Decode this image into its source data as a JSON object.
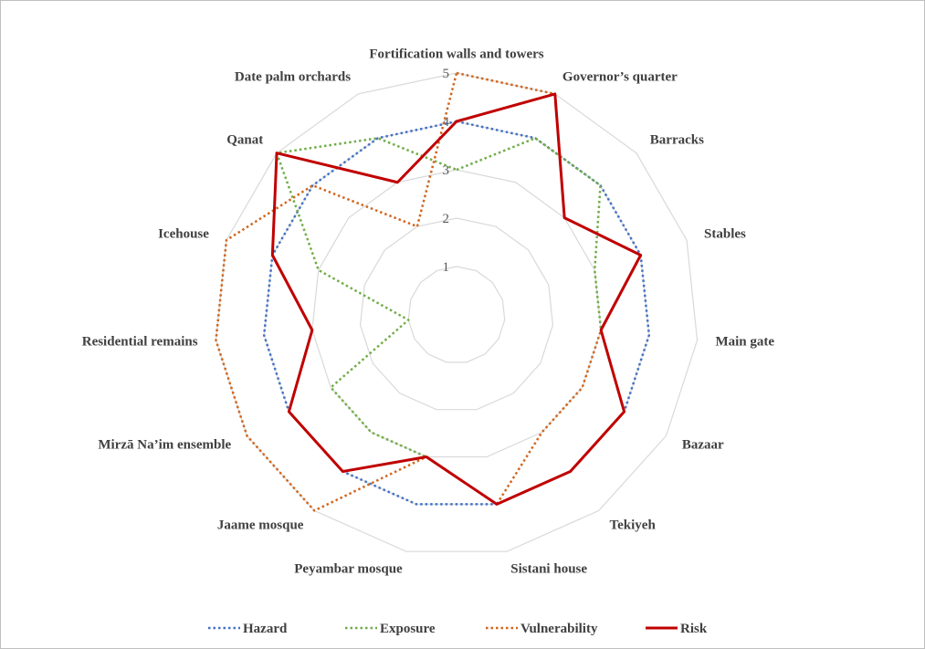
{
  "chart_data": {
    "type": "radar",
    "categories": [
      "Fortification walls and towers",
      "Governor’s quarter",
      "Barracks",
      "Stables",
      "Main gate",
      "Bazaar",
      "Tekiyeh",
      "Sistani house",
      "Peyambar mosque",
      "Jaame mosque",
      "Mirzā Na’im ensemble",
      "Residential remains",
      "Icehouse",
      "Qanat",
      "Date palm orchards"
    ],
    "series": [
      {
        "name": "Hazard",
        "color": "#4472c4",
        "style": "dotted",
        "values": [
          4,
          4,
          4,
          4,
          4,
          4,
          4,
          4,
          4,
          4,
          4,
          4,
          4,
          4,
          4
        ]
      },
      {
        "name": "Exposure",
        "color": "#70ad47",
        "style": "dotted",
        "values": [
          3,
          4,
          4,
          3,
          3,
          4,
          4,
          4,
          3,
          3,
          3,
          1,
          3,
          5,
          4
        ]
      },
      {
        "name": "Vulnerability",
        "color": "#d0661e",
        "style": "dotted",
        "values": [
          5,
          5,
          3,
          4,
          3,
          3,
          3,
          4,
          3,
          5,
          5,
          5,
          5,
          4,
          2
        ]
      },
      {
        "name": "Risk",
        "color": "#c00000",
        "style": "solid",
        "values": [
          4,
          5,
          3,
          4,
          3,
          4,
          4,
          4,
          3,
          4,
          4,
          3,
          4,
          5,
          3
        ]
      }
    ],
    "rlim": [
      0,
      5
    ],
    "rticks": [
      1,
      2,
      3,
      4,
      5
    ],
    "grid": true,
    "legend": "bottom"
  }
}
